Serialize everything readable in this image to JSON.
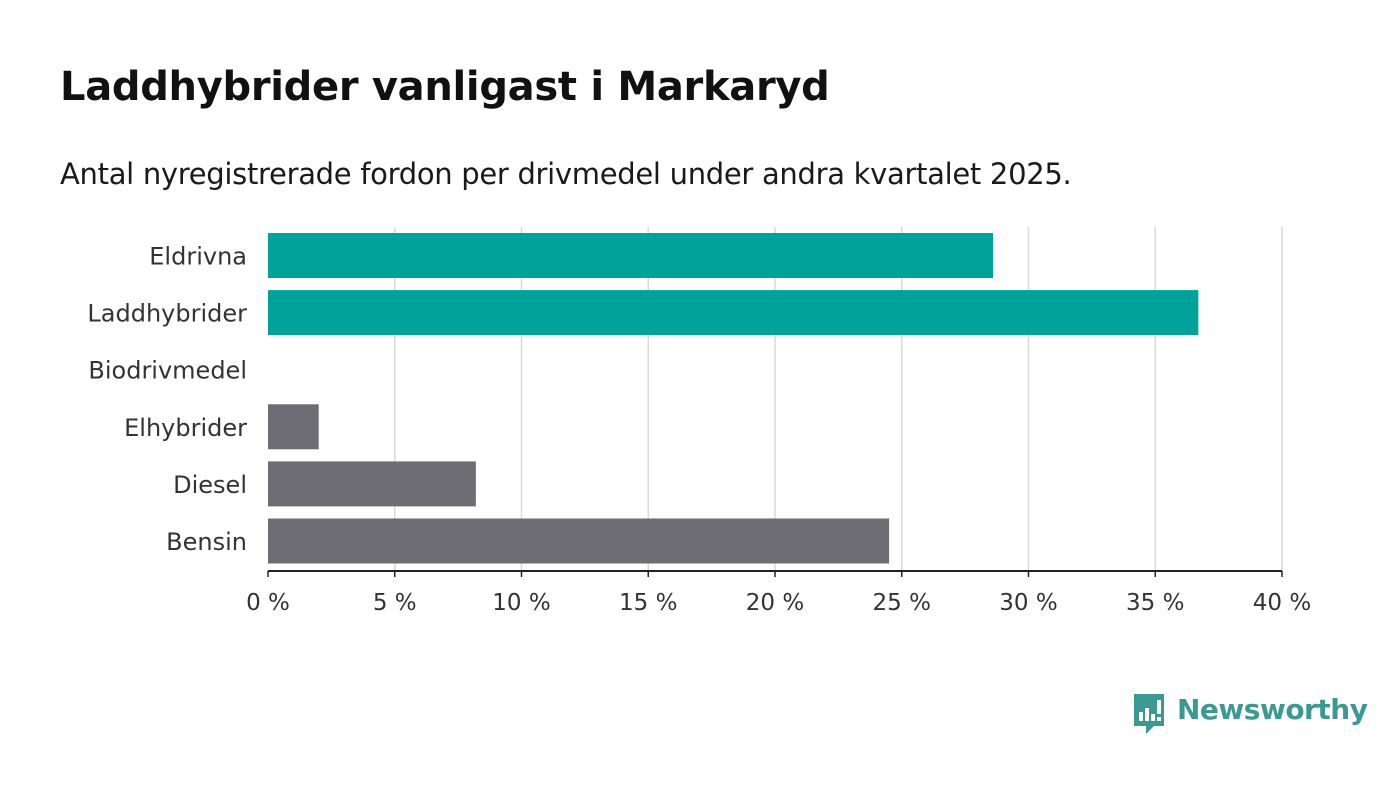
{
  "header": {
    "title": "Laddhybrider vanligast i Markaryd",
    "subtitle": "Antal nyregistrerade fordon per drivmedel under andra kvartalet 2025."
  },
  "brand": {
    "name": "Newsworthy",
    "icon": "newsworthy-logo-icon",
    "color": "#3a9a93"
  },
  "chart_data": {
    "type": "bar",
    "orientation": "horizontal",
    "categories": [
      "Eldrivna",
      "Laddhybrider",
      "Biodrivmedel",
      "Elhybrider",
      "Diesel",
      "Bensin"
    ],
    "values": [
      28.6,
      36.7,
      0,
      2.0,
      8.2,
      24.5
    ],
    "colors": [
      "#00a39a",
      "#00a39a",
      "#00a39a",
      "#6e6d74",
      "#6e6d74",
      "#6e6d74"
    ],
    "xlim": [
      0,
      40
    ],
    "xticks": [
      0,
      5,
      10,
      15,
      20,
      25,
      30,
      35,
      40
    ],
    "xtick_labels": [
      "0 %",
      "5 %",
      "10 %",
      "15 %",
      "20 %",
      "25 %",
      "30 %",
      "35 %",
      "40 %"
    ],
    "grid": "vertical",
    "xlabel": "",
    "ylabel": ""
  }
}
